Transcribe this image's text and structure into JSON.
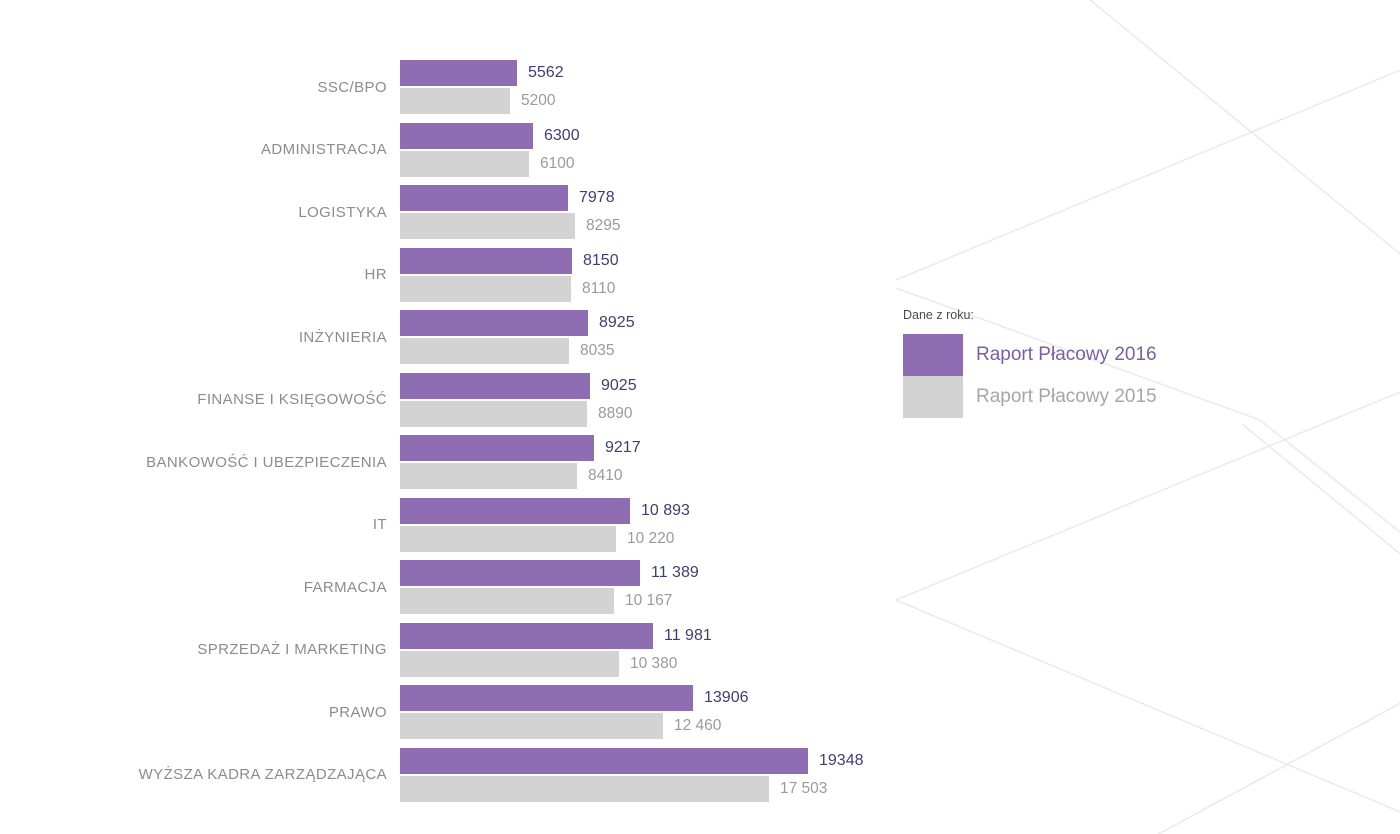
{
  "legend": {
    "title": "Dane z roku:",
    "items": [
      {
        "label": "Raport Płacowy 2016",
        "color": "#8f6db2"
      },
      {
        "label": "Raport Płacowy 2015",
        "color": "#d3d3d3"
      }
    ]
  },
  "colors": {
    "bar_2016": "#8f6db2",
    "bar_2015": "#d3d3d3",
    "value_text_2016": "#3f3c78",
    "value_text_2015": "#9b9b9b",
    "category_text": "#8c8c8c",
    "background_lines": "#eaeaea"
  },
  "chart_data": {
    "type": "bar",
    "orientation": "horizontal",
    "title": "",
    "xlabel": "",
    "ylabel": "",
    "xmax": 19348,
    "grid": false,
    "legend_position": "right",
    "categories": [
      "SSC/BPO",
      "ADMINISTRACJA",
      "LOGISTYKA",
      "HR",
      "INŻYNIERIA",
      "FINANSE I KSIĘGOWOŚĆ",
      "BANKOWOŚĆ I UBEZPIECZENIA",
      "IT",
      "FARMACJA",
      "SPRZEDAŻ I MARKETING",
      "PRAWO",
      "WYŻSZA KADRA ZARZĄDZAJĄCA"
    ],
    "series": [
      {
        "name": "Raport Płacowy 2016",
        "values": [
          5562,
          6300,
          7978,
          8150,
          8925,
          9025,
          9217,
          10893,
          11389,
          11981,
          13906,
          19348
        ],
        "labels": [
          "5562",
          "6300",
          "7978",
          "8150",
          "8925",
          "9025",
          "9217",
          "10 893",
          "11 389",
          "11 981",
          "13906",
          "19348"
        ]
      },
      {
        "name": "Raport Płacowy 2015",
        "values": [
          5200,
          6100,
          8295,
          8110,
          8035,
          8890,
          8410,
          10220,
          10167,
          10380,
          12460,
          17503
        ],
        "labels": [
          "5200",
          "6100",
          "8295",
          "8110",
          "8035",
          "8890",
          "8410",
          "10 220",
          "10 167",
          "10 380",
          "12 460",
          "17 503"
        ]
      }
    ]
  }
}
